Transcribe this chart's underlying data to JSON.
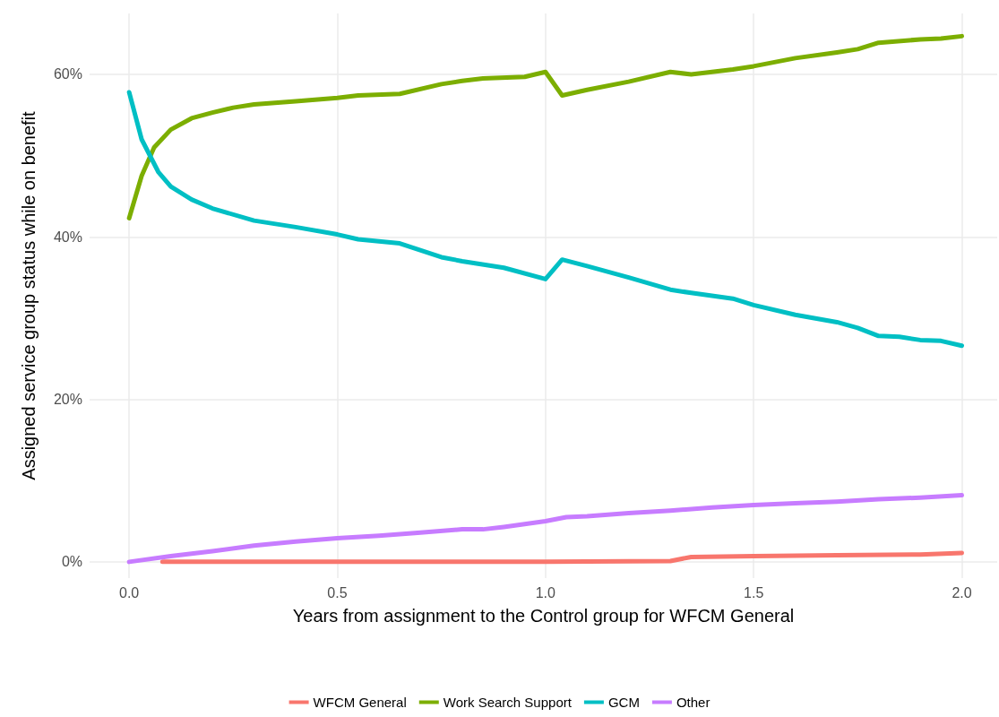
{
  "chart_data": {
    "type": "line",
    "xlabel": "Years from assignment to the Control group for WFCM General",
    "ylabel": "Assigned service group status while on benefit",
    "xlim": [
      -0.095,
      2.085
    ],
    "xticks": [
      {
        "value": 0,
        "label": "0.0"
      },
      {
        "value": 0.5,
        "label": "0.5"
      },
      {
        "value": 1,
        "label": "1.0"
      },
      {
        "value": 1.5,
        "label": "1.5"
      },
      {
        "value": 2,
        "label": "2.0"
      }
    ],
    "ylim": [
      -2,
      67.5
    ],
    "yticks": [
      {
        "value": 0,
        "label": "0%"
      },
      {
        "value": 20,
        "label": "20%"
      },
      {
        "value": 40,
        "label": "40%"
      },
      {
        "value": 60,
        "label": "60%"
      }
    ],
    "grid": true,
    "legend": "bottom",
    "marker": "none",
    "line_style": "solid",
    "series": [
      {
        "name": "WFCM General",
        "color": "#f8766d",
        "x": [
          0.08,
          0.5,
          1.0,
          1.3,
          1.35,
          1.5,
          1.7,
          1.9,
          2.0
        ],
        "values": [
          0,
          0,
          0,
          0.1,
          0.6,
          0.7,
          0.8,
          0.9,
          1.1
        ]
      },
      {
        "name": "Work Search Support",
        "color": "#7cae00",
        "x": [
          0,
          0.03,
          0.06,
          0.1,
          0.15,
          0.2,
          0.25,
          0.3,
          0.4,
          0.5,
          0.55,
          0.65,
          0.75,
          0.8,
          0.85,
          0.95,
          1.0,
          1.04,
          1.1,
          1.2,
          1.3,
          1.35,
          1.45,
          1.5,
          1.6,
          1.7,
          1.75,
          1.8,
          1.9,
          1.95,
          2.0
        ],
        "values": [
          42.3,
          47.5,
          51,
          53.2,
          54.6,
          55.3,
          55.9,
          56.3,
          56.7,
          57.1,
          57.4,
          57.6,
          58.8,
          59.2,
          59.5,
          59.7,
          60.3,
          57.4,
          58.1,
          59.1,
          60.3,
          60.0,
          60.6,
          61.0,
          62.0,
          62.7,
          63.1,
          63.9,
          64.3,
          64.4,
          64.7
        ]
      },
      {
        "name": "GCM",
        "color": "#00bfc4",
        "x": [
          0,
          0.03,
          0.07,
          0.1,
          0.15,
          0.2,
          0.3,
          0.4,
          0.5,
          0.55,
          0.65,
          0.75,
          0.8,
          0.9,
          1.0,
          1.04,
          1.1,
          1.2,
          1.3,
          1.35,
          1.45,
          1.5,
          1.6,
          1.7,
          1.75,
          1.8,
          1.85,
          1.9,
          1.95,
          2.0
        ],
        "values": [
          57.8,
          52,
          48,
          46.2,
          44.6,
          43.5,
          42,
          41.2,
          40.3,
          39.7,
          39.2,
          37.5,
          37,
          36.2,
          34.8,
          37.2,
          36.4,
          35,
          33.5,
          33.1,
          32.4,
          31.6,
          30.4,
          29.5,
          28.8,
          27.8,
          27.7,
          27.3,
          27.2,
          26.6
        ]
      },
      {
        "name": "Other",
        "color": "#c77cff",
        "x": [
          0,
          0.1,
          0.2,
          0.3,
          0.4,
          0.5,
          0.6,
          0.7,
          0.8,
          0.85,
          0.9,
          1.0,
          1.05,
          1.1,
          1.2,
          1.3,
          1.4,
          1.5,
          1.6,
          1.7,
          1.8,
          1.9,
          2.0
        ],
        "values": [
          0,
          0.7,
          1.3,
          2.0,
          2.5,
          2.9,
          3.2,
          3.6,
          4.0,
          4.0,
          4.3,
          5.0,
          5.5,
          5.6,
          6.0,
          6.3,
          6.7,
          7.0,
          7.2,
          7.4,
          7.7,
          7.9,
          8.2
        ]
      }
    ]
  }
}
